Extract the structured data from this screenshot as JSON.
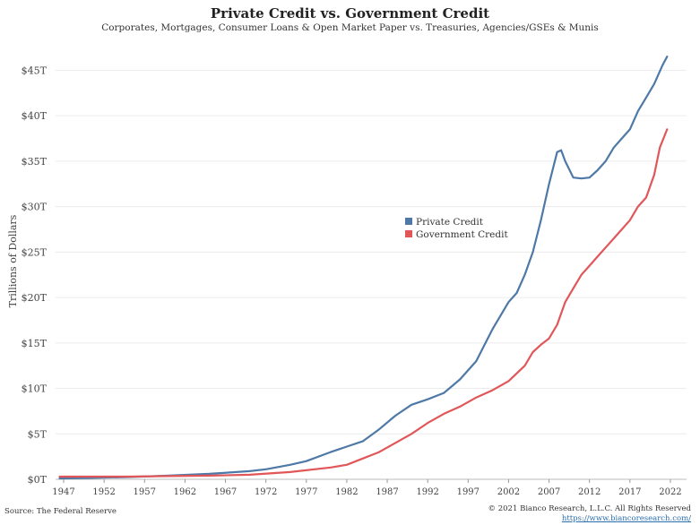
{
  "header": {
    "title": "Private Credit vs. Government Credit",
    "subtitle": "Corporates, Mortgages, Consumer Loans & Open Market Paper vs. Treasuries, Agencies/GSEs & Munis"
  },
  "footer": {
    "source": "Source: The Federal Reserve",
    "copyright": "© 2021 Bianco Research, L.L.C. All Rights Reserved",
    "link": "https://www.biancoresearch.com/"
  },
  "chart_data": {
    "type": "line",
    "title": "Private Credit vs. Government Credit",
    "subtitle": "Corporates, Mortgages, Consumer Loans & Open Market Paper vs. Treasuries, Agencies/GSEs & Munis",
    "xlabel": "",
    "ylabel": "Trillions of Dollars",
    "xlim": [
      1946,
      2024
    ],
    "ylim": [
      0,
      48
    ],
    "x_ticks": [
      1947,
      1952,
      1957,
      1962,
      1967,
      1972,
      1977,
      1982,
      1987,
      1992,
      1997,
      2002,
      2007,
      2012,
      2017,
      2022
    ],
    "y_ticks": [
      0,
      5,
      10,
      15,
      20,
      25,
      30,
      35,
      40,
      45
    ],
    "y_tick_labels": [
      "$0T",
      "$5T",
      "$10T",
      "$15T",
      "$20T",
      "$25T",
      "$30T",
      "$35T",
      "$40T",
      "$45T"
    ],
    "grid": "horizontal",
    "legend_position": "center",
    "series": [
      {
        "name": "Private Credit",
        "color": "#4e79a7",
        "points": [
          [
            1946.5,
            0.1
          ],
          [
            1950,
            0.15
          ],
          [
            1955,
            0.25
          ],
          [
            1960,
            0.4
          ],
          [
            1965,
            0.6
          ],
          [
            1970,
            0.9
          ],
          [
            1972,
            1.1
          ],
          [
            1975,
            1.6
          ],
          [
            1977,
            2.0
          ],
          [
            1980,
            3.0
          ],
          [
            1982,
            3.6
          ],
          [
            1984,
            4.2
          ],
          [
            1986,
            5.5
          ],
          [
            1988,
            7.0
          ],
          [
            1990,
            8.2
          ],
          [
            1992,
            8.8
          ],
          [
            1994,
            9.5
          ],
          [
            1996,
            11.0
          ],
          [
            1998,
            13.0
          ],
          [
            2000,
            16.5
          ],
          [
            2002,
            19.5
          ],
          [
            2003,
            20.5
          ],
          [
            2004,
            22.5
          ],
          [
            2005,
            25.0
          ],
          [
            2006,
            28.5
          ],
          [
            2007,
            32.5
          ],
          [
            2008,
            36.0
          ],
          [
            2008.5,
            36.2
          ],
          [
            2009,
            35.0
          ],
          [
            2010,
            33.2
          ],
          [
            2011,
            33.1
          ],
          [
            2012,
            33.2
          ],
          [
            2013,
            34.0
          ],
          [
            2014,
            35.0
          ],
          [
            2015,
            36.5
          ],
          [
            2016,
            37.5
          ],
          [
            2017,
            38.5
          ],
          [
            2018,
            40.5
          ],
          [
            2019,
            42.0
          ],
          [
            2020,
            43.5
          ],
          [
            2021,
            45.5
          ],
          [
            2021.6,
            46.5
          ]
        ]
      },
      {
        "name": "Government Credit",
        "color": "#e15759",
        "points": [
          [
            1946.5,
            0.3
          ],
          [
            1950,
            0.3
          ],
          [
            1955,
            0.3
          ],
          [
            1960,
            0.35
          ],
          [
            1965,
            0.4
          ],
          [
            1970,
            0.5
          ],
          [
            1975,
            0.8
          ],
          [
            1980,
            1.3
          ],
          [
            1982,
            1.6
          ],
          [
            1984,
            2.3
          ],
          [
            1986,
            3.0
          ],
          [
            1988,
            4.0
          ],
          [
            1990,
            5.0
          ],
          [
            1992,
            6.2
          ],
          [
            1994,
            7.2
          ],
          [
            1996,
            8.0
          ],
          [
            1998,
            9.0
          ],
          [
            2000,
            9.8
          ],
          [
            2002,
            10.8
          ],
          [
            2004,
            12.5
          ],
          [
            2005,
            14.0
          ],
          [
            2006,
            14.8
          ],
          [
            2007,
            15.5
          ],
          [
            2008,
            17.0
          ],
          [
            2009,
            19.5
          ],
          [
            2010,
            21.0
          ],
          [
            2011,
            22.5
          ],
          [
            2012,
            23.5
          ],
          [
            2013,
            24.5
          ],
          [
            2014,
            25.5
          ],
          [
            2015,
            26.5
          ],
          [
            2016,
            27.5
          ],
          [
            2017,
            28.5
          ],
          [
            2018,
            30.0
          ],
          [
            2019,
            31.0
          ],
          [
            2020,
            33.5
          ],
          [
            2020.7,
            36.5
          ],
          [
            2021.6,
            38.5
          ]
        ]
      }
    ]
  }
}
